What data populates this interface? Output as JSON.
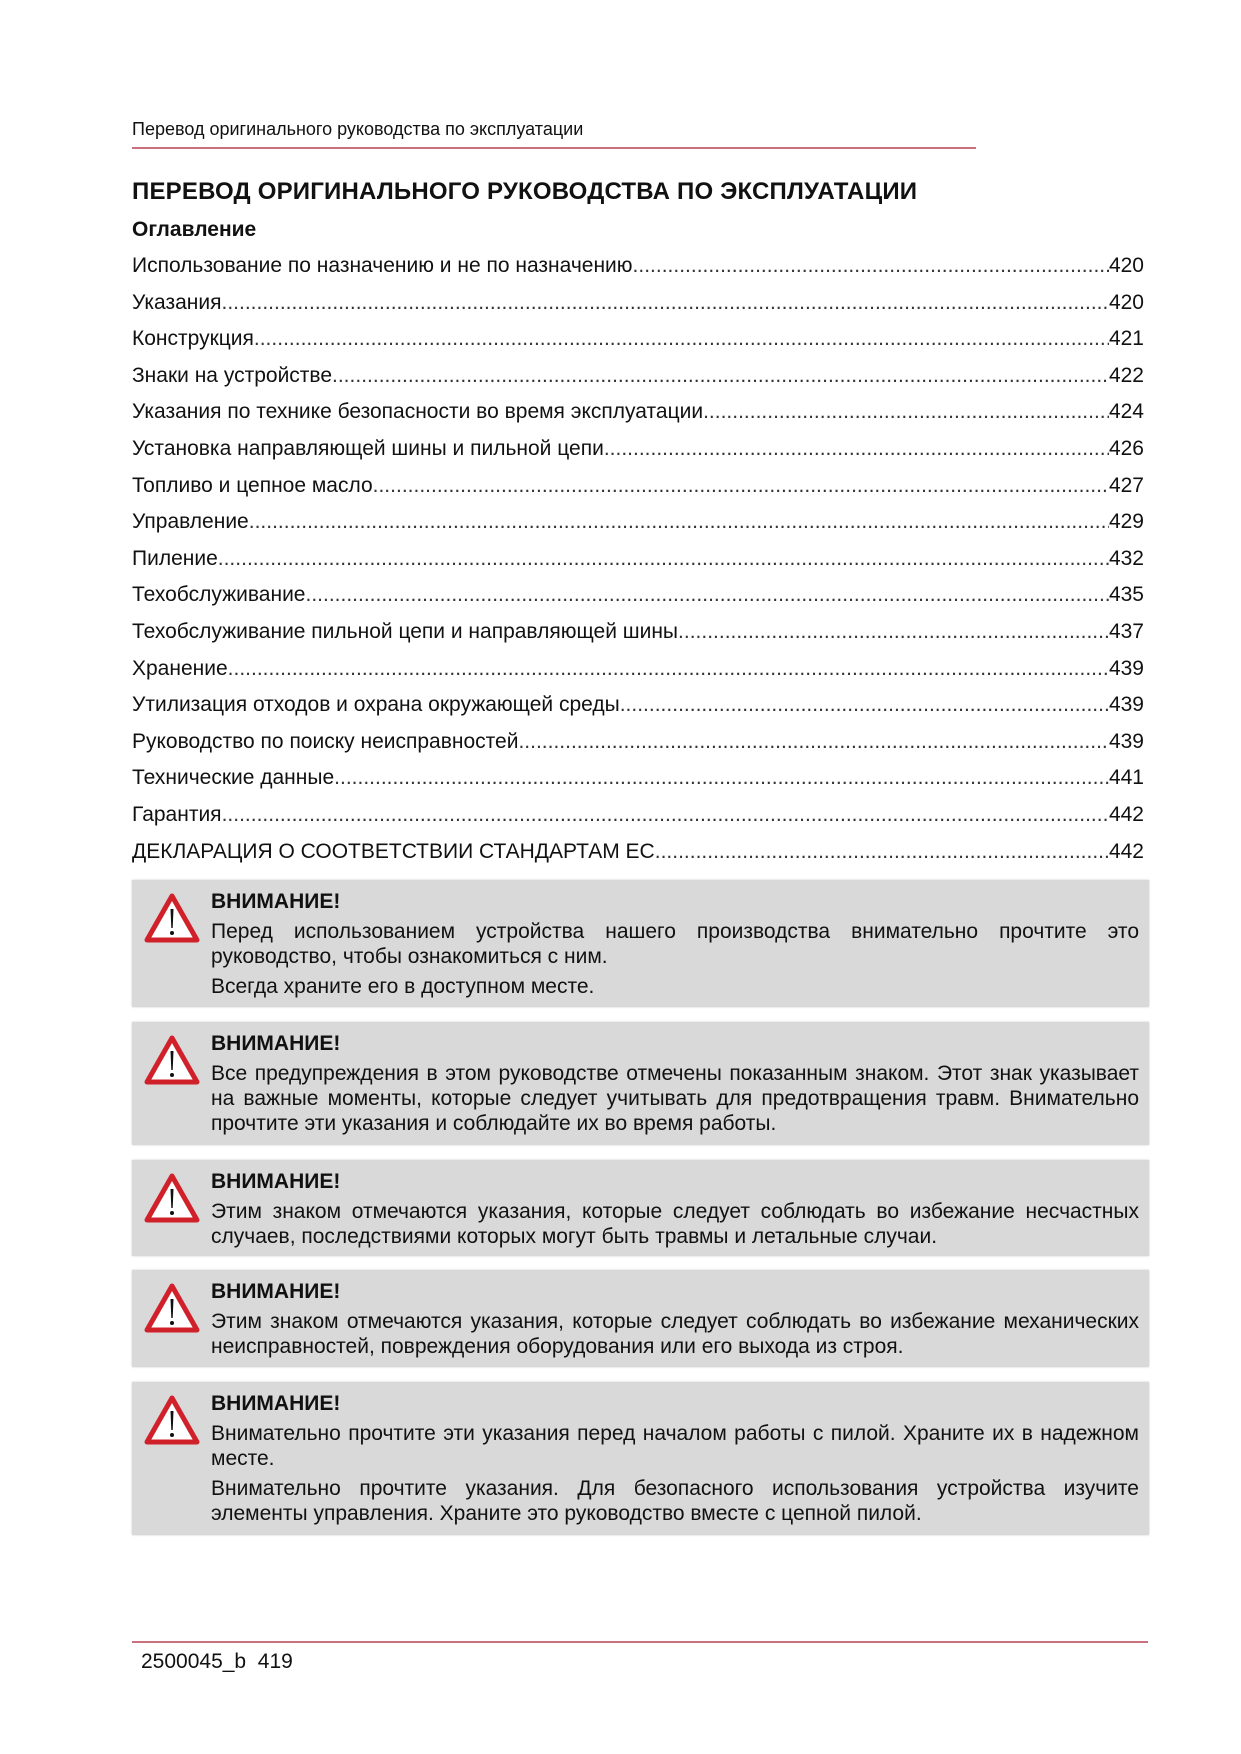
{
  "header": {
    "running_title": "Перевод оригинального руководства по эксплуатации"
  },
  "title": "ПЕРЕВОД ОРИГИНАЛЬНОГО РУКОВОДСТВА ПО ЭКСПЛУАТАЦИИ",
  "toc": {
    "heading": "Оглавление",
    "items": [
      {
        "label": "Использование по назначению и не по назначению",
        "page": "420"
      },
      {
        "label": "Указания",
        "page": "420"
      },
      {
        "label": "Конструкция",
        "page": "421"
      },
      {
        "label": "Знаки на устройстве",
        "page": "422"
      },
      {
        "label": "Указания по технике безопасности во время эксплуатации",
        "page": "424"
      },
      {
        "label": "Установка направляющей шины и пильной цепи",
        "page": "426"
      },
      {
        "label": "Топливо и цепное масло",
        "page": "427"
      },
      {
        "label": "Управление",
        "page": "429"
      },
      {
        "label": "Пиление",
        "page": "432"
      },
      {
        "label": "Техобслуживание",
        "page": "435"
      },
      {
        "label": "Техобслуживание пильной цепи и направляющей шины",
        "page": "437"
      },
      {
        "label": "Хранение",
        "page": "439"
      },
      {
        "label": "Утилизация отходов и охрана окружающей среды",
        "page": "439"
      },
      {
        "label": "Руководство по поиску неисправностей",
        "page": "439"
      },
      {
        "label": "Технические данные",
        "page": "441"
      },
      {
        "label": "Гарантия",
        "page": "442"
      },
      {
        "label": "ДЕКЛАРАЦИЯ О СООТВЕТСТВИИ СТАНДАРТАМ ЕС",
        "page": "442"
      }
    ]
  },
  "warnings": [
    {
      "icon": "warning-triangle-icon",
      "heading": "ВНИМАНИЕ!",
      "paragraphs": [
        "Перед использованием устройства нашего производства внимательно прочтите это руководство, чтобы ознакомиться с ним.",
        "Всегда храните его в доступном месте."
      ]
    },
    {
      "icon": "warning-triangle-icon",
      "heading": "ВНИМАНИЕ!",
      "paragraphs": [
        "Все предупреждения в этом руководстве отмечены показанным знаком. Этот знак указывает на важные моменты, которые следует учитывать для предотвращения травм. Внимательно прочтите эти указания и соблюдайте их во время работы."
      ]
    },
    {
      "icon": "warning-triangle-icon",
      "heading": "ВНИМАНИЕ!",
      "paragraphs": [
        "Этим знаком отмечаются указания, которые следует соблюдать во избежание несчастных случаев, последствиями которых могут быть травмы и летальные случаи."
      ]
    },
    {
      "icon": "warning-triangle-icon",
      "heading": "ВНИМАНИЕ!",
      "paragraphs": [
        "Этим знаком отмечаются указания, которые следует соблюдать во избежание механических неисправностей, повреждения оборудования или его выхода из строя."
      ]
    },
    {
      "icon": "warning-triangle-icon",
      "heading": "ВНИМАНИЕ!",
      "paragraphs": [
        "Внимательно прочтите эти указания перед началом работы с пилой. Храните их в надежном месте.",
        "Внимательно прочтите указания. Для безопасного использования устройства изучите элементы управления. Храните это руководство вместе с цепной пилой."
      ]
    }
  ],
  "footer": {
    "doc_code": "2500045_b",
    "page_number": "419"
  },
  "colors": {
    "rule": "#c9707c",
    "warning_red": "#d0202a",
    "box_bg": "#d9d9da"
  }
}
